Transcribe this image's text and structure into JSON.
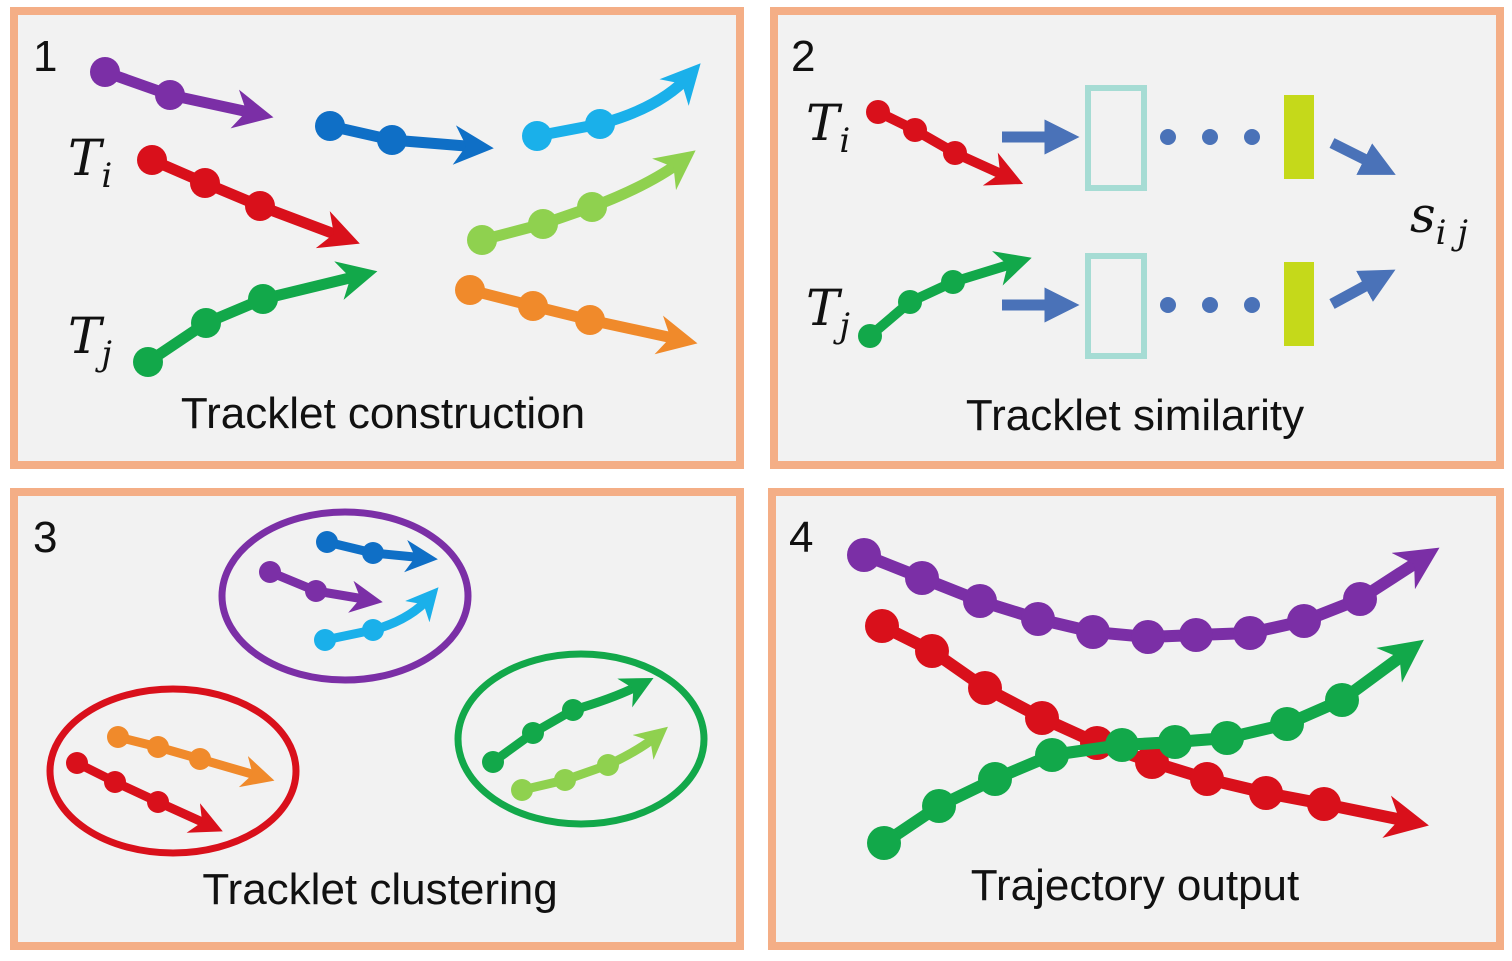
{
  "panels": [
    {
      "number": "1",
      "caption": "Tracklet construction"
    },
    {
      "number": "2",
      "caption": "Tracklet similarity"
    },
    {
      "number": "3",
      "caption": "Tracklet clustering"
    },
    {
      "number": "4",
      "caption": "Trajectory output"
    }
  ],
  "labels": {
    "ti_main": "T",
    "ti_sub": "i",
    "tj_main": "T",
    "tj_sub": "j",
    "sij_main": "s",
    "sij_sub": "i j"
  },
  "colors": {
    "purple": "#7b2fa6",
    "blue": "#0f6fc6",
    "cyan": "#1ab0ea",
    "red": "#d9101b",
    "green": "#12a84a",
    "lightgreen": "#8fd14f",
    "orange": "#f08a2b",
    "steelblue": "#4a72b8",
    "teal_box": "#a6dcd4",
    "lime_bar": "#c5d91a",
    "panel_border": "#f4ae86",
    "panel_fill": "#f2f2f2"
  },
  "ellipses": [
    {
      "color": "purple",
      "members": [
        "blue",
        "purple",
        "cyan"
      ]
    },
    {
      "color": "red",
      "members": [
        "orange",
        "red"
      ]
    },
    {
      "color": "green",
      "members": [
        "green",
        "lightgreen"
      ]
    }
  ]
}
